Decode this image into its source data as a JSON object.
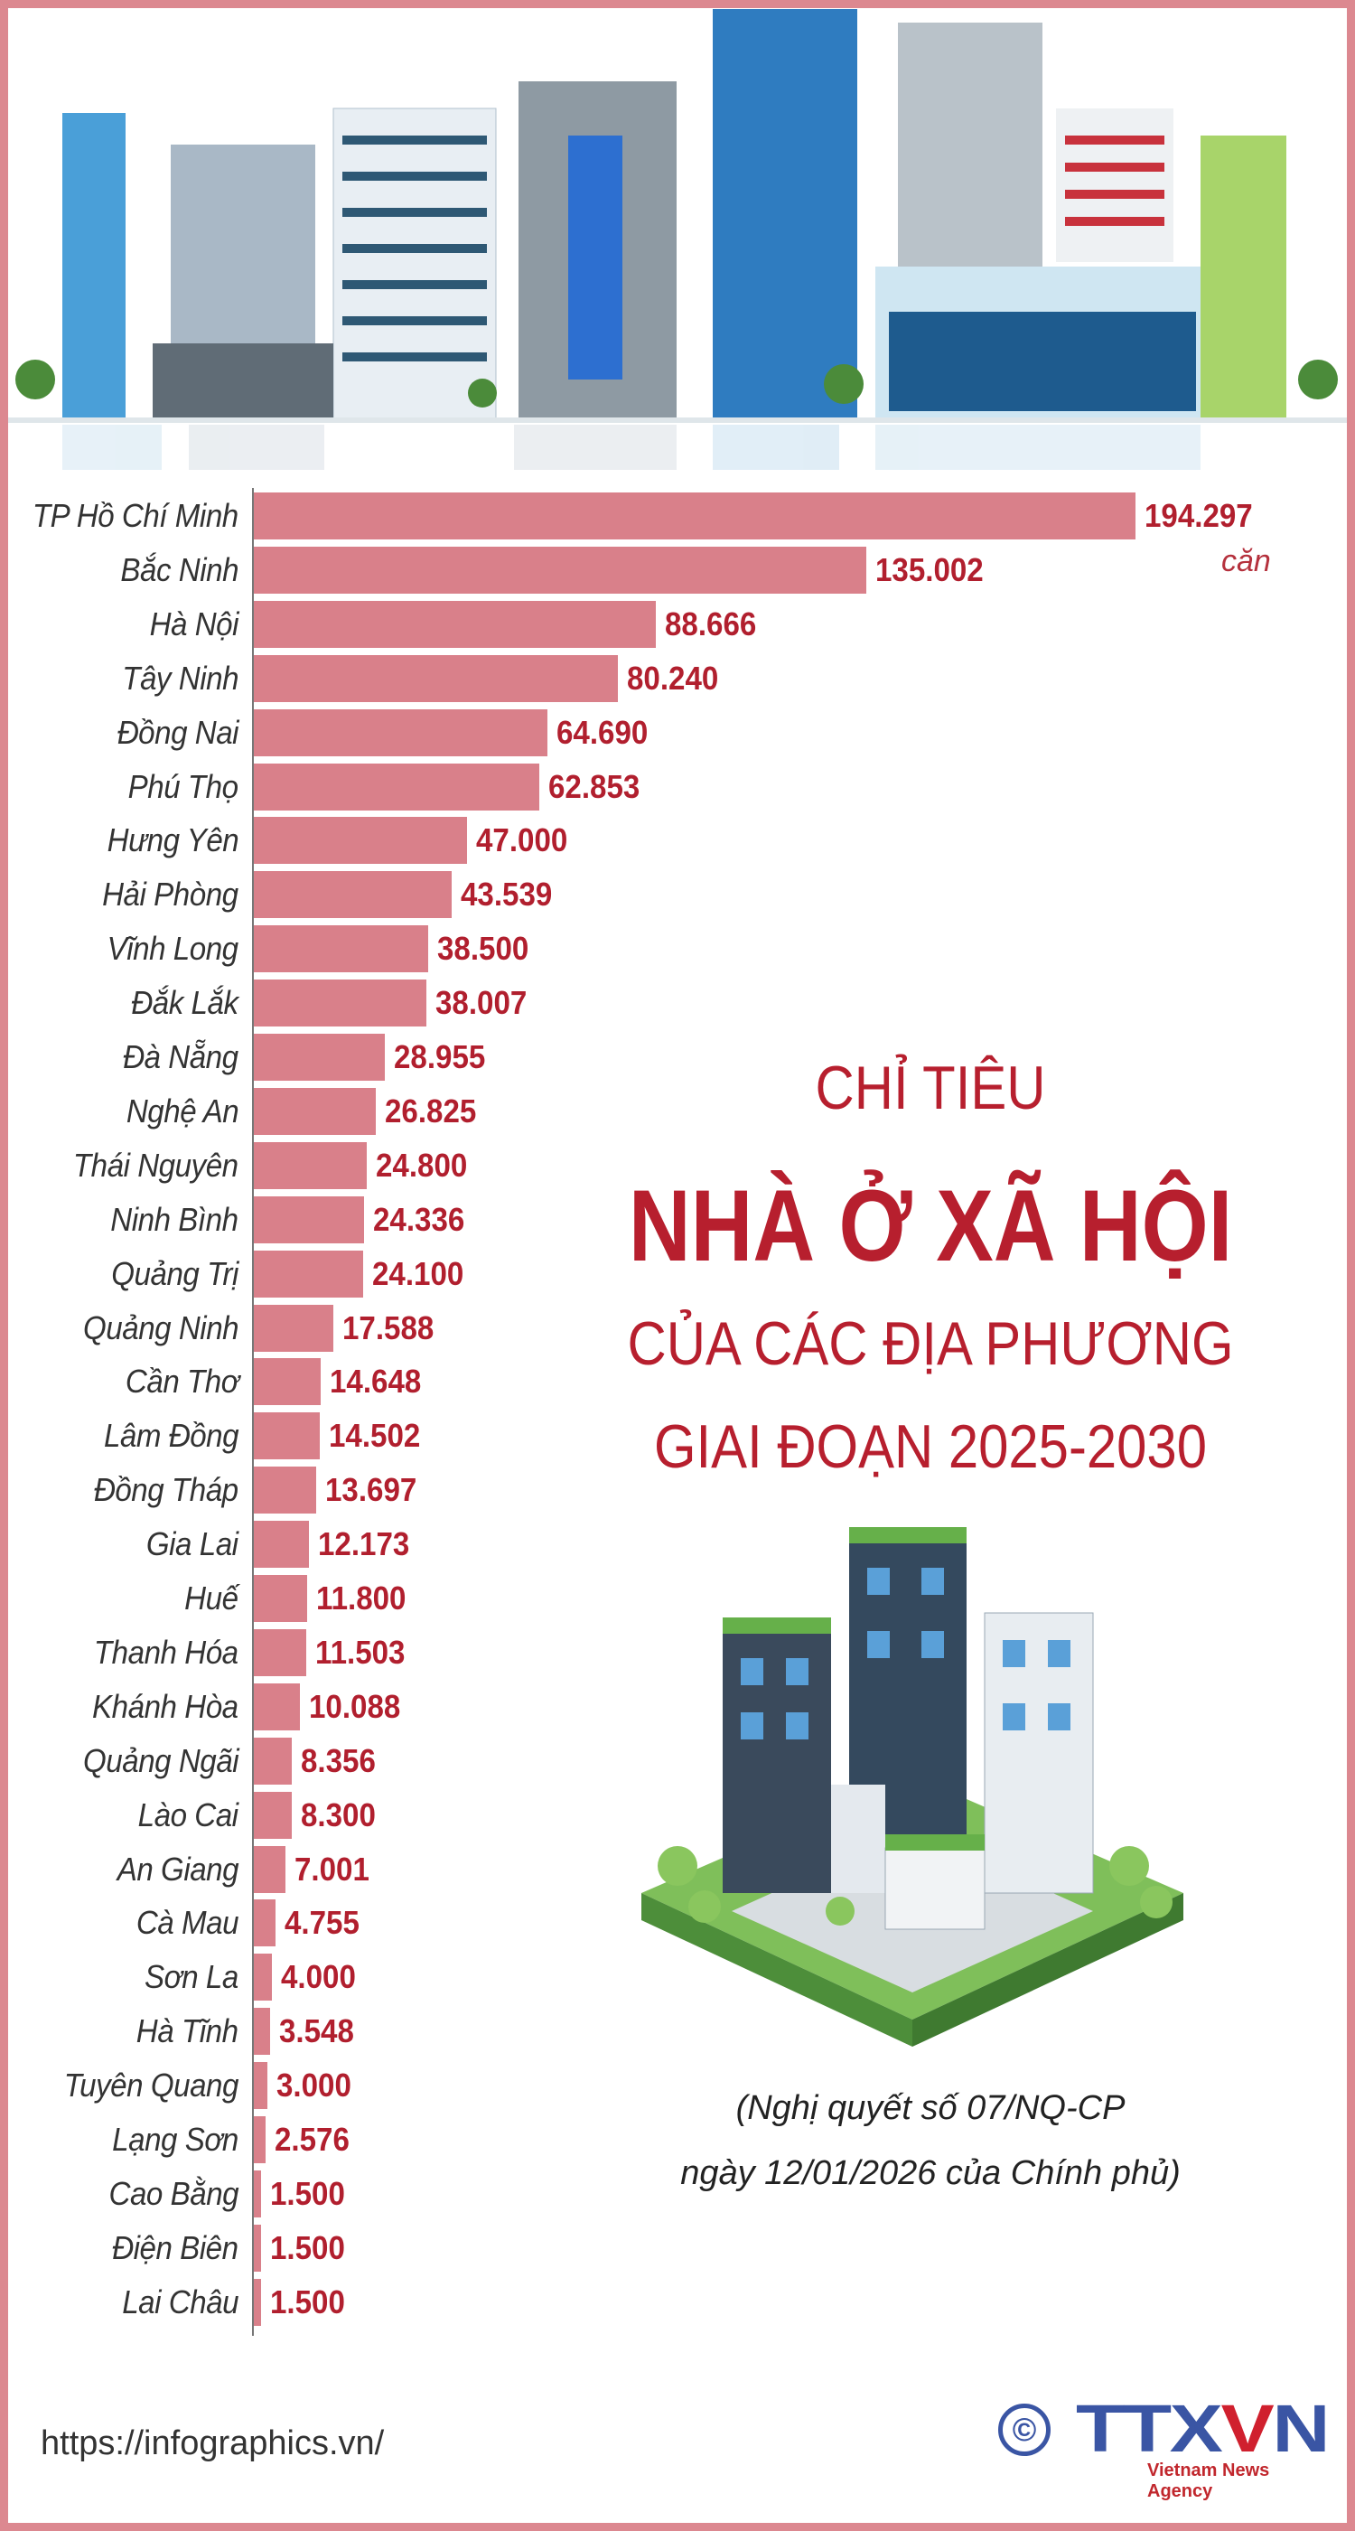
{
  "title": {
    "line1": "CHỈ TIÊU",
    "line2": "NHÀ Ở XÃ HỘI",
    "line3": "CỦA CÁC ĐỊA PHƯƠNG",
    "line4": "GIAI ĐOẠN 2025-2030"
  },
  "note": {
    "line1": "(Nghị quyết số 07/NQ-CP",
    "line2": "ngày 12/01/2026 của Chính phủ)"
  },
  "footer": {
    "url": "https://infographics.vn/",
    "logo_text": "TTXVN",
    "logo_tagline": "Vietnam News Agency",
    "copyright_symbol": "©"
  },
  "colors": {
    "bar": "#d9808a",
    "value_text": "#b11f2e",
    "title": "#b71f2e",
    "frame": "#dc8890",
    "logo_blue": "#3a55a4",
    "logo_red": "#d0202e"
  },
  "chart_data": {
    "type": "bar",
    "orientation": "horizontal",
    "unit": "căn",
    "categories": [
      "TP Hồ Chí Minh",
      "Bắc Ninh",
      "Hà Nội",
      "Tây Ninh",
      "Đồng Nai",
      "Phú Thọ",
      "Hưng Yên",
      "Hải Phòng",
      "Vĩnh Long",
      "Đắk Lắk",
      "Đà Nẵng",
      "Nghệ An",
      "Thái Nguyên",
      "Ninh Bình",
      "Quảng Trị",
      "Quảng Ninh",
      "Cần Thơ",
      "Lâm Đồng",
      "Đồng Tháp",
      "Gia Lai",
      "Huế",
      "Thanh Hóa",
      "Khánh Hòa",
      "Quảng Ngãi",
      "Lào Cai",
      "An Giang",
      "Cà Mau",
      "Sơn La",
      "Hà Tĩnh",
      "Tuyên Quang",
      "Lạng Sơn",
      "Cao Bằng",
      "Điện Biên",
      "Lai Châu"
    ],
    "values": [
      194297,
      135002,
      88666,
      80240,
      64690,
      62853,
      47000,
      43539,
      38500,
      38007,
      28955,
      26825,
      24800,
      24336,
      24100,
      17588,
      14648,
      14502,
      13697,
      12173,
      11800,
      11503,
      10088,
      8356,
      8300,
      7001,
      4755,
      4000,
      3548,
      3000,
      2576,
      1500,
      1500,
      1500
    ],
    "value_labels": [
      "194.297",
      "135.002",
      "88.666",
      "80.240",
      "64.690",
      "62.853",
      "47.000",
      "43.539",
      "38.500",
      "38.007",
      "28.955",
      "26.825",
      "24.800",
      "24.336",
      "24.100",
      "17.588",
      "14.648",
      "14.502",
      "13.697",
      "12.173",
      "11.800",
      "11.503",
      "10.088",
      "8.356",
      "8.300",
      "7.001",
      "4.755",
      "4.000",
      "3.548",
      "3.000",
      "2.576",
      "1.500",
      "1.500",
      "1.500"
    ],
    "grid": false,
    "legend": "none"
  }
}
